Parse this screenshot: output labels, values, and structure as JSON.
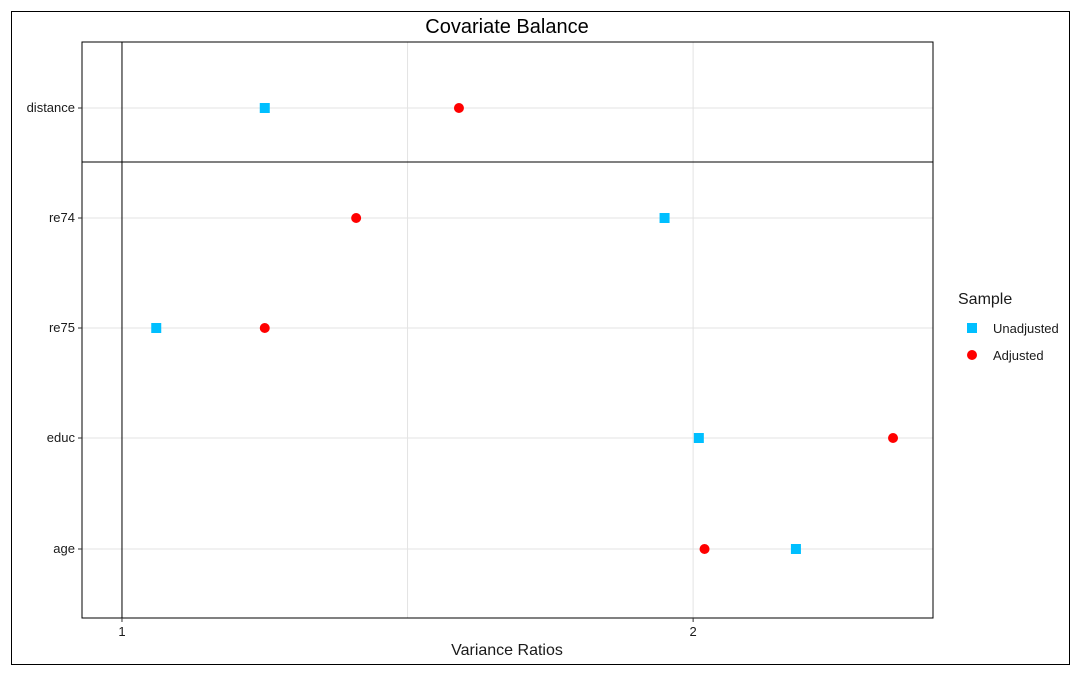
{
  "chart_data": {
    "type": "scatter",
    "title": "Covariate Balance",
    "xlabel": "Variance Ratios",
    "ylabel": "",
    "xlim": [
      0.93,
      2.42
    ],
    "x_ticks": [
      1,
      2
    ],
    "x_tick_labels": [
      "1",
      "2"
    ],
    "x_gridlines": [
      1.5,
      2
    ],
    "threshold_line_x": 1,
    "categories": [
      "distance",
      "re74",
      "re75",
      "educ",
      "age"
    ],
    "separator_after": "distance",
    "grid": true,
    "legend_title": "Sample",
    "legend_position": "right",
    "series": [
      {
        "name": "Unadjusted",
        "color": "#00BFFF",
        "marker": "square",
        "values": [
          1.25,
          1.95,
          1.06,
          2.01,
          2.18
        ]
      },
      {
        "name": "Adjusted",
        "color": "#FF0000",
        "marker": "circle",
        "values": [
          1.59,
          1.41,
          1.25,
          2.35,
          2.02
        ]
      }
    ]
  }
}
